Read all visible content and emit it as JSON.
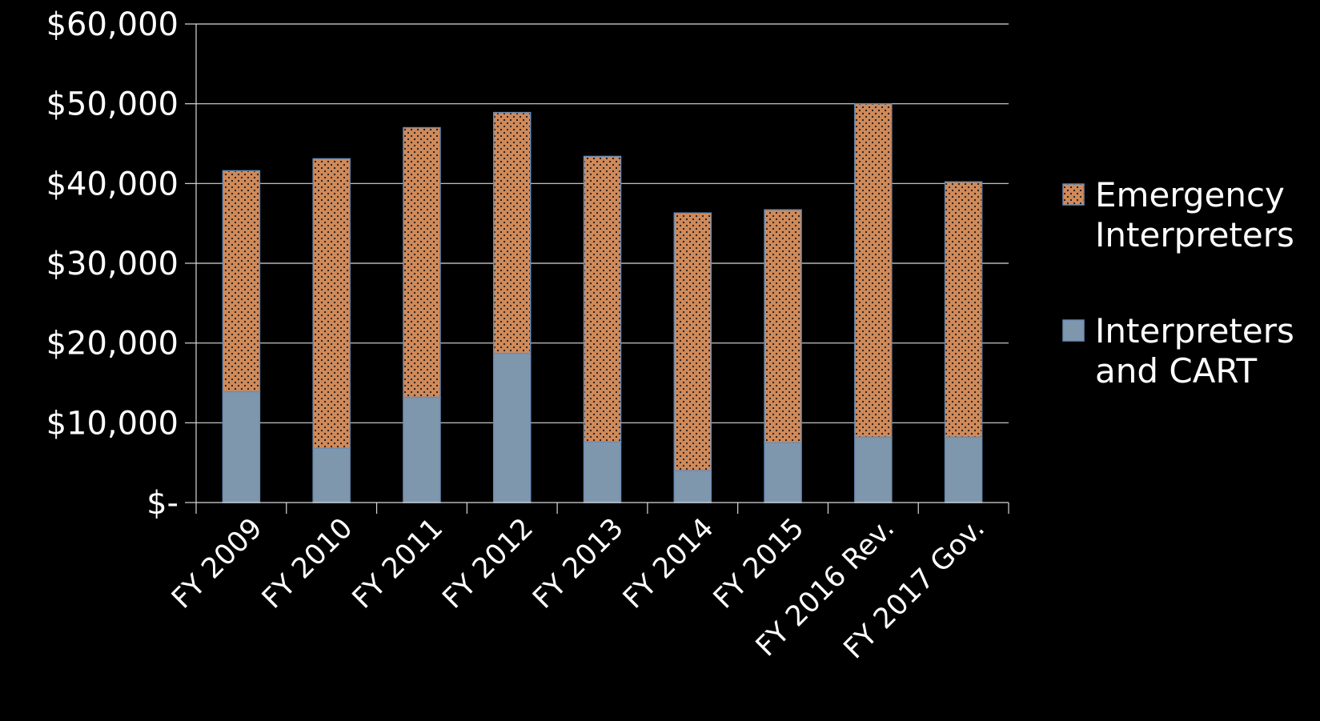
{
  "chart_data": {
    "type": "bar",
    "stacked": true,
    "title": "",
    "xlabel": "",
    "ylabel": "",
    "categories": [
      "FY 2009",
      "FY 2010",
      "FY 2011",
      "FY 2012",
      "FY 2013",
      "FY 2014",
      "FY 2015",
      "FY 2016 Rev.",
      "FY 2017 Gov."
    ],
    "series": [
      {
        "name": "Interpreters and CART",
        "legend_lines": [
          "Interpreters",
          "and CART"
        ],
        "color": "#7f97ad",
        "pattern": "solid",
        "values": [
          13900,
          6800,
          13200,
          18700,
          7600,
          4000,
          7500,
          8200,
          8200
        ]
      },
      {
        "name": "Emergency Interpreters",
        "legend_lines": [
          "Emergency",
          "Interpreters"
        ],
        "color": "#d08a5a",
        "pattern": "dotted",
        "values": [
          27700,
          36300,
          33800,
          30200,
          35800,
          32300,
          29200,
          41800,
          32000
        ]
      }
    ],
    "ylim": [
      0,
      60000
    ],
    "y_ticks": [
      {
        "value": 0,
        "label": "$-"
      },
      {
        "value": 10000,
        "label": "$10,000"
      },
      {
        "value": 20000,
        "label": "$20,000"
      },
      {
        "value": 30000,
        "label": "$30,000"
      },
      {
        "value": 40000,
        "label": "$40,000"
      },
      {
        "value": 50000,
        "label": "$50,000"
      },
      {
        "value": 60000,
        "label": "$60,000"
      }
    ],
    "grid": true,
    "legend_position": "right",
    "legend_order": [
      "Emergency Interpreters",
      "Interpreters and CART"
    ],
    "colors": {
      "background": "#000000",
      "text": "#ffffff",
      "grid": "#d9d9d9",
      "bar_outline": "#6b8cb3",
      "dot": "#1a1a1a"
    }
  }
}
